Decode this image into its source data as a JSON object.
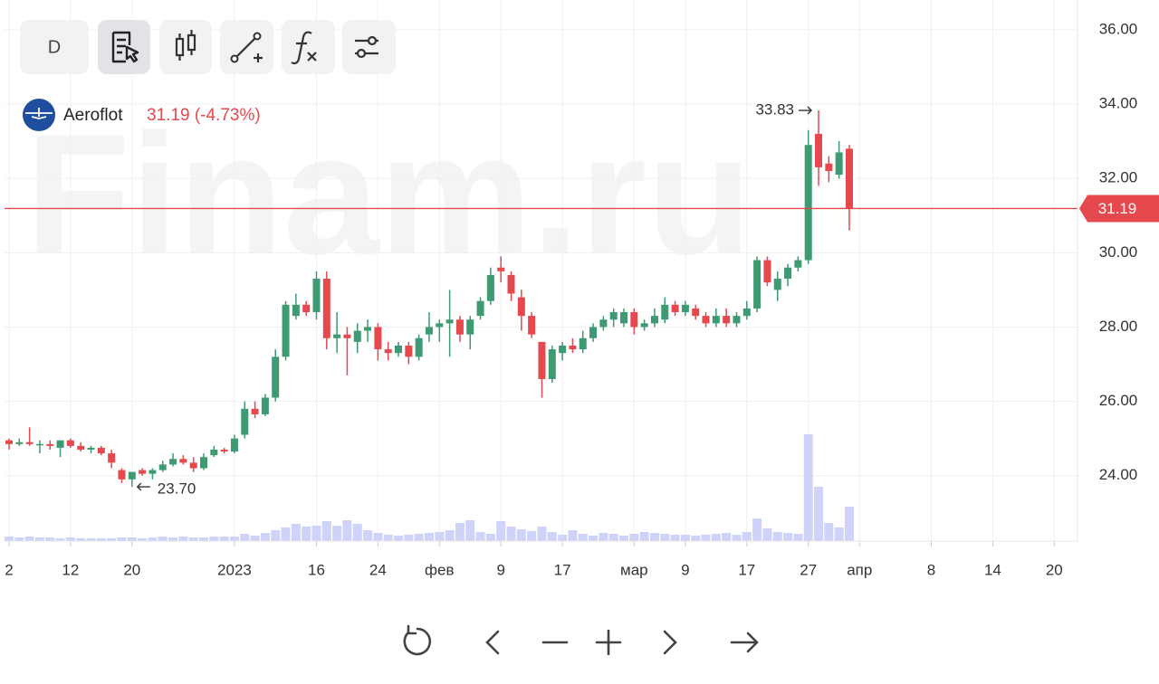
{
  "chart_data": {
    "type": "candlestick",
    "title": "Aeroflot",
    "subtitle": "31.19 (-4.73%)",
    "watermark": "Finam.ru",
    "interval": "D",
    "open": [
      24.95,
      24.85,
      24.9,
      24.85,
      24.85,
      24.75,
      24.95,
      24.8,
      24.7,
      24.75,
      24.6,
      24.15,
      23.9,
      24.15,
      24.05,
      24.15,
      24.3,
      24.45,
      24.35,
      24.2,
      24.55,
      24.7,
      24.65,
      25.1,
      25.8,
      25.65,
      26.1,
      27.2,
      28.3,
      28.6,
      28.4,
      29.3,
      27.7,
      27.8,
      27.6,
      27.9,
      28.0,
      27.4,
      27.3,
      27.5,
      27.2,
      27.8,
      28.0,
      28.1,
      28.2,
      27.8,
      28.3,
      28.7,
      29.6,
      29.4,
      28.8,
      28.3,
      27.6,
      26.6,
      27.3,
      27.5,
      27.4,
      27.7,
      28.0,
      28.2,
      28.1,
      28.4,
      28.0,
      28.1,
      28.2,
      28.6,
      28.4,
      28.5,
      28.3,
      28.1,
      28.3,
      28.1,
      28.3,
      28.5,
      29.8,
      29.0,
      29.3,
      29.6,
      29.8,
      33.2,
      32.4,
      32.1,
      32.8
    ],
    "high": [
      25.0,
      25.0,
      25.3,
      24.95,
      24.95,
      24.95,
      25.0,
      24.9,
      24.8,
      24.8,
      24.7,
      24.2,
      24.1,
      24.2,
      24.2,
      24.4,
      24.6,
      24.55,
      24.5,
      24.6,
      24.8,
      24.75,
      25.1,
      26.0,
      26.0,
      26.2,
      27.4,
      28.7,
      28.9,
      28.7,
      29.5,
      29.5,
      28.4,
      28.0,
      28.1,
      28.2,
      28.1,
      27.6,
      27.6,
      27.6,
      27.8,
      28.4,
      28.2,
      29.0,
      28.3,
      28.3,
      28.8,
      29.6,
      29.9,
      29.5,
      29.0,
      28.4,
      27.6,
      27.5,
      27.6,
      27.7,
      27.9,
      28.1,
      28.3,
      28.5,
      28.5,
      28.5,
      28.2,
      28.5,
      28.8,
      28.7,
      28.7,
      28.6,
      28.4,
      28.5,
      28.5,
      28.4,
      28.7,
      29.9,
      29.9,
      29.5,
      29.7,
      29.9,
      33.3,
      33.83,
      32.6,
      33.0,
      32.9
    ],
    "low": [
      24.7,
      24.8,
      24.8,
      24.6,
      24.7,
      24.5,
      24.75,
      24.65,
      24.6,
      24.55,
      24.2,
      23.8,
      23.7,
      24.0,
      23.9,
      24.1,
      24.25,
      24.3,
      24.1,
      24.15,
      24.5,
      24.6,
      24.6,
      25.0,
      25.55,
      25.6,
      26.0,
      27.1,
      28.2,
      28.3,
      28.2,
      27.4,
      27.3,
      26.7,
      27.3,
      27.6,
      27.1,
      27.1,
      27.2,
      27.0,
      27.1,
      27.6,
      27.6,
      27.2,
      27.6,
      27.4,
      28.2,
      28.6,
      29.2,
      28.7,
      27.9,
      27.7,
      26.1,
      26.5,
      27.1,
      27.3,
      27.3,
      27.6,
      27.9,
      28.0,
      28.0,
      27.8,
      27.9,
      28.0,
      28.1,
      28.3,
      28.3,
      28.2,
      28.0,
      28.0,
      28.0,
      28.0,
      28.2,
      28.4,
      29.1,
      28.7,
      29.1,
      29.5,
      29.7,
      31.8,
      31.9,
      32.0,
      30.6
    ],
    "close": [
      24.85,
      24.9,
      24.85,
      24.85,
      24.8,
      24.95,
      24.8,
      24.7,
      24.75,
      24.6,
      24.35,
      23.9,
      24.1,
      24.05,
      24.15,
      24.3,
      24.45,
      24.35,
      24.2,
      24.5,
      24.7,
      24.65,
      25.0,
      25.8,
      25.65,
      26.1,
      27.2,
      28.6,
      28.6,
      28.4,
      29.3,
      27.7,
      27.8,
      27.7,
      27.9,
      28.0,
      27.4,
      27.3,
      27.5,
      27.2,
      27.7,
      28.0,
      28.1,
      28.2,
      27.8,
      28.2,
      28.7,
      29.4,
      29.5,
      28.9,
      28.3,
      27.8,
      26.6,
      27.4,
      27.5,
      27.4,
      27.7,
      28.0,
      28.2,
      28.4,
      28.4,
      28.0,
      28.1,
      28.3,
      28.6,
      28.4,
      28.6,
      28.3,
      28.1,
      28.3,
      28.1,
      28.3,
      28.5,
      29.8,
      29.2,
      29.3,
      29.6,
      29.8,
      32.9,
      32.3,
      32.2,
      32.7,
      31.19
    ],
    "volume": [
      5,
      4,
      5,
      4,
      4,
      3,
      4,
      3,
      3,
      3,
      3,
      4,
      4,
      3,
      4,
      5,
      4,
      5,
      4,
      4,
      5,
      5,
      5,
      8,
      6,
      9,
      12,
      15,
      19,
      16,
      17,
      22,
      17,
      23,
      19,
      12,
      9,
      7,
      6,
      7,
      8,
      9,
      10,
      12,
      20,
      23,
      10,
      8,
      22,
      16,
      13,
      11,
      16,
      10,
      7,
      12,
      8,
      6,
      9,
      8,
      6,
      8,
      10,
      9,
      8,
      7,
      7,
      6,
      7,
      8,
      9,
      7,
      10,
      25,
      14,
      10,
      9,
      8,
      118,
      60,
      20,
      15,
      38
    ],
    "up_color": "#3d9a72",
    "down_color": "#e5484d",
    "volume_color": "#cfd3fa",
    "ylim": [
      22.24,
      36.68
    ],
    "volume_ylim": [
      0,
      120
    ],
    "xlim": [
      -0.44,
      104.27
    ],
    "yticks": [
      {
        "value": 24,
        "label": "24.00"
      },
      {
        "value": 26,
        "label": "26.00"
      },
      {
        "value": 28,
        "label": "28.00"
      },
      {
        "value": 30,
        "label": "30.00"
      },
      {
        "value": 32,
        "label": "32.00"
      },
      {
        "value": 34,
        "label": "34.00"
      },
      {
        "value": 36,
        "label": "36.00"
      }
    ],
    "xticks": [
      {
        "value": 0,
        "label": "2"
      },
      {
        "value": 6,
        "label": "12"
      },
      {
        "value": 12,
        "label": "20"
      },
      {
        "value": 22,
        "label": "2023"
      },
      {
        "value": 30,
        "label": "16"
      },
      {
        "value": 36,
        "label": "24"
      },
      {
        "value": 42,
        "label": "фев"
      },
      {
        "value": 48,
        "label": "9"
      },
      {
        "value": 54,
        "label": "17"
      },
      {
        "value": 61,
        "label": "мар"
      },
      {
        "value": 66,
        "label": "9"
      },
      {
        "value": 72,
        "label": "17"
      },
      {
        "value": 78,
        "label": "27"
      },
      {
        "value": 83,
        "label": "апр"
      },
      {
        "value": 90,
        "label": "8"
      },
      {
        "value": 96,
        "label": "14"
      },
      {
        "value": 102,
        "label": "20"
      }
    ],
    "last_price": 31.19,
    "last_price_color": "#e5484d",
    "annotations": [
      {
        "x": 79,
        "value": 33.83,
        "side": "left"
      },
      {
        "x": 12,
        "value": 23.7,
        "label": "23.70",
        "side": "right"
      }
    ],
    "grid": true
  }
}
